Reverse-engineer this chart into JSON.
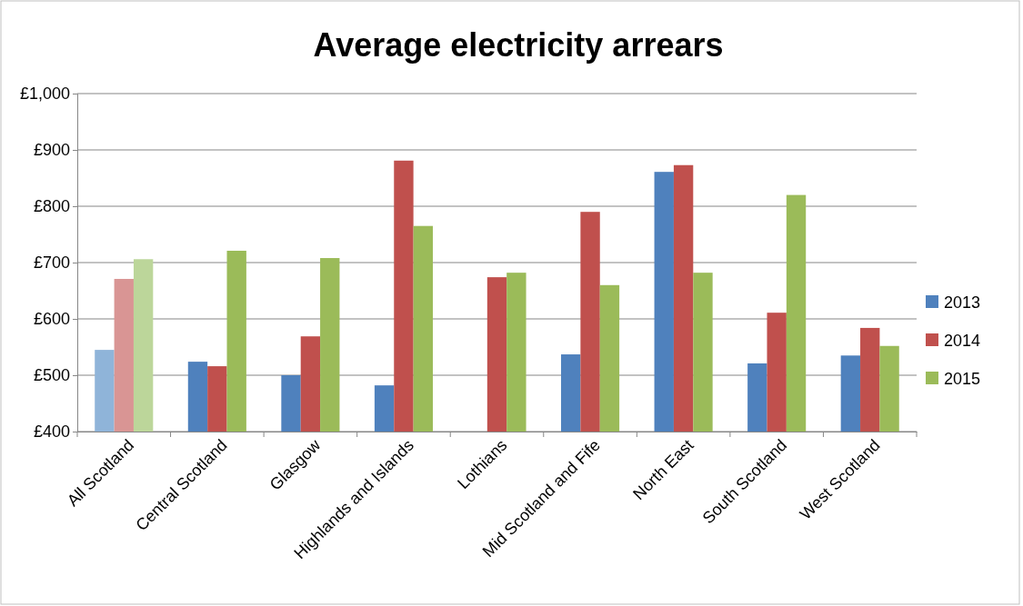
{
  "chart_data": {
    "type": "bar",
    "title": "Average electricity arrears",
    "categories": [
      "All Scotland",
      "Central Scotland",
      "Glasgow",
      "Highlands and Islands",
      "Lothians",
      "Mid Scotland and Fife",
      "North East",
      "South Scotland",
      "West Scotland"
    ],
    "series": [
      {
        "name": "2013",
        "color": "#4f81bd",
        "colors": [
          "#8fb4d9",
          "#4f81bd",
          "#4f81bd",
          "#4f81bd",
          null,
          "#4f81bd",
          "#4f81bd",
          "#4f81bd",
          "#4f81bd"
        ],
        "values": [
          545,
          524,
          500,
          482,
          null,
          537,
          861,
          521,
          535
        ]
      },
      {
        "name": "2014",
        "color": "#c0504d",
        "colors": [
          "#d99594",
          "#c0504d",
          "#c0504d",
          "#c0504d",
          "#c0504d",
          "#c0504d",
          "#c0504d",
          "#c0504d",
          "#c0504d"
        ],
        "values": [
          671,
          516,
          569,
          881,
          674,
          790,
          873,
          611,
          584
        ]
      },
      {
        "name": "2015",
        "color": "#9bbb59",
        "colors": [
          "#bcd69a",
          "#9bbb59",
          "#9bbb59",
          "#9bbb59",
          "#9bbb59",
          "#9bbb59",
          "#9bbb59",
          "#9bbb59",
          "#9bbb59"
        ],
        "values": [
          706,
          721,
          708,
          765,
          682,
          660,
          682,
          820,
          552
        ]
      }
    ],
    "ylim": [
      400,
      1000
    ],
    "yticks": [
      {
        "value": 400,
        "label": "£400"
      },
      {
        "value": 500,
        "label": "£500"
      },
      {
        "value": 600,
        "label": "£600"
      },
      {
        "value": 700,
        "label": "£700"
      },
      {
        "value": 800,
        "label": "£800"
      },
      {
        "value": 900,
        "label": "£900"
      },
      {
        "value": 1000,
        "label": "£1,000"
      }
    ],
    "grid": true,
    "legend": "right"
  }
}
